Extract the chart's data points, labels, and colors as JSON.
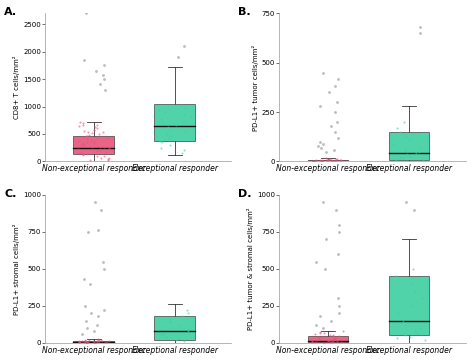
{
  "subplots": [
    {
      "label": "A.",
      "ylabel": "CD8+ T cells/mm²",
      "ylim": [
        0,
        2700
      ],
      "yticks": [
        0,
        500,
        1000,
        1500,
        2000,
        2500
      ],
      "group1": {
        "color": "#E8537A",
        "dot_color": "#E8537A",
        "median": 250,
        "q1": 130,
        "q3": 470,
        "whisker_low": 0,
        "whisker_high": 720,
        "outliers": [
          1300,
          1420,
          1500,
          1580,
          1650,
          1750,
          1850,
          2700
        ],
        "jitter_y": [
          30,
          50,
          70,
          90,
          110,
          130,
          150,
          170,
          190,
          210,
          230,
          250,
          270,
          290,
          310,
          330,
          350,
          370,
          390,
          410,
          430,
          450,
          470,
          490,
          510,
          530,
          550,
          580,
          610,
          640,
          670,
          700,
          720,
          20,
          60,
          100,
          140,
          180,
          220,
          260,
          300,
          340,
          380,
          420,
          460,
          500,
          540,
          580,
          620,
          660
        ]
      },
      "group2": {
        "color": "#3ECFA0",
        "dot_color": "#3ECFA0",
        "median": 650,
        "q1": 380,
        "q3": 1050,
        "whisker_low": 120,
        "whisker_high": 1720,
        "outliers": [
          2100,
          1900
        ],
        "jitter_y": [
          380,
          420,
          460,
          500,
          540,
          580,
          620,
          660,
          700,
          740,
          780,
          820,
          860,
          900,
          940,
          980,
          1020,
          150,
          200,
          250,
          300,
          350
        ]
      }
    },
    {
      "label": "B.",
      "ylabel": "PD-L1+ tumor cells/mm²",
      "ylim": [
        0,
        750
      ],
      "yticks": [
        0,
        250,
        500,
        750
      ],
      "group1": {
        "color": "#E8537A",
        "dot_color": "#E8537A",
        "median": 3,
        "q1": 0,
        "q3": 8,
        "whisker_low": 0,
        "whisker_high": 15,
        "outliers": [
          50,
          60,
          70,
          80,
          90,
          100,
          120,
          150,
          180,
          200,
          250,
          280,
          300,
          350,
          380,
          420,
          450
        ],
        "jitter_y": [
          0,
          1,
          2,
          3,
          4,
          5,
          6,
          7,
          8,
          9,
          10,
          11,
          12,
          13,
          14,
          15,
          1,
          2,
          3,
          4,
          5,
          6,
          7,
          8
        ]
      },
      "group2": {
        "color": "#3ECFA0",
        "dot_color": "#3ECFA0",
        "median": 40,
        "q1": 8,
        "q3": 150,
        "whisker_low": 0,
        "whisker_high": 280,
        "outliers": [
          650,
          680
        ],
        "jitter_y": [
          8,
          20,
          35,
          50,
          70,
          90,
          110,
          130,
          150,
          170,
          200,
          5,
          15,
          25,
          40,
          60
        ]
      }
    },
    {
      "label": "C.",
      "ylabel": "PD-L1+ stromal cells/mm²",
      "ylim": [
        0,
        1000
      ],
      "yticks": [
        0,
        250,
        500,
        750,
        1000
      ],
      "group1": {
        "color": "#E8537A",
        "dot_color": "#E8537A",
        "median": 4,
        "q1": 0,
        "q3": 12,
        "whisker_low": 0,
        "whisker_high": 25,
        "outliers": [
          60,
          80,
          100,
          120,
          150,
          180,
          200,
          220,
          250,
          400,
          430,
          500,
          550,
          750,
          760,
          900,
          950
        ],
        "jitter_y": [
          0,
          1,
          2,
          3,
          4,
          5,
          6,
          7,
          8,
          9,
          10,
          11,
          12,
          13,
          14,
          15,
          16,
          17,
          18,
          20,
          22,
          24,
          1,
          3,
          5,
          7,
          9,
          11,
          13,
          15
        ]
      },
      "group2": {
        "color": "#3ECFA0",
        "dot_color": "#3ECFA0",
        "median": 80,
        "q1": 20,
        "q3": 180,
        "whisker_low": 0,
        "whisker_high": 260,
        "outliers": [],
        "jitter_y": [
          20,
          40,
          60,
          80,
          100,
          120,
          140,
          160,
          180,
          200,
          220,
          10,
          30,
          50,
          70,
          90
        ]
      }
    },
    {
      "label": "D.",
      "ylabel": "PD-L1+ tumor & stromal cells/mm²",
      "ylim": [
        0,
        1000
      ],
      "yticks": [
        0,
        250,
        500,
        750,
        1000
      ],
      "group1": {
        "color": "#E8537A",
        "dot_color": "#E8537A",
        "median": 12,
        "q1": 3,
        "q3": 45,
        "whisker_low": 0,
        "whisker_high": 80,
        "outliers": [
          100,
          120,
          150,
          180,
          200,
          250,
          300,
          500,
          550,
          600,
          700,
          750,
          800,
          900,
          950
        ],
        "jitter_y": [
          3,
          6,
          9,
          12,
          15,
          18,
          21,
          24,
          27,
          30,
          33,
          36,
          39,
          42,
          45,
          48,
          51,
          55,
          60,
          65,
          70,
          75,
          80,
          1,
          5,
          8,
          11,
          14,
          17,
          20,
          23,
          26
        ]
      },
      "group2": {
        "color": "#3ECFA0",
        "dot_color": "#3ECFA0",
        "median": 150,
        "q1": 50,
        "q3": 450,
        "whisker_low": 0,
        "whisker_high": 700,
        "outliers": [
          900,
          950
        ],
        "jitter_y": [
          50,
          100,
          150,
          200,
          250,
          300,
          350,
          400,
          450,
          500,
          20,
          30,
          40,
          60,
          70,
          80
        ]
      }
    }
  ],
  "group_labels": [
    "Non-exceptional responder",
    "Exceptional responder"
  ],
  "background_color": "#ffffff",
  "label_fontsize": 5.5,
  "panel_label_fontsize": 8,
  "tick_fontsize": 5,
  "ylabel_fontsize": 5
}
